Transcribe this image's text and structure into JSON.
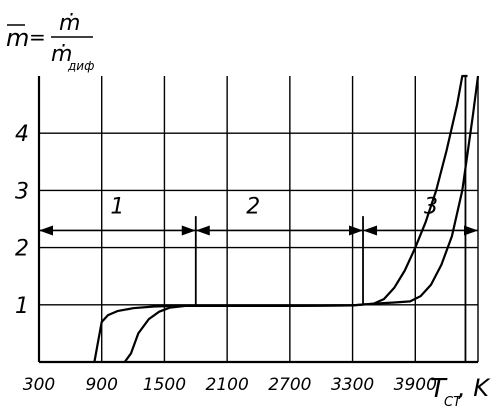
{
  "chart_data": {
    "type": "line",
    "title": "",
    "ylabel": {
      "lhs": "m",
      "equals": "=",
      "numerator": "ṁ",
      "denominator": "ṁ",
      "denominator_subscript": "диф"
    },
    "xlabel": {
      "symbol": "T",
      "subscript": "CT",
      "unit": ", K"
    },
    "xlim": [
      300,
      4500
    ],
    "ylim": [
      0,
      5
    ],
    "x_ticks": [
      300,
      900,
      1500,
      2100,
      2700,
      3300,
      3900
    ],
    "y_ticks": [
      1,
      2,
      3,
      4
    ],
    "grid": true,
    "legend": "none",
    "series": [
      {
        "x": [
          830,
          860,
          900,
          960,
          1050,
          1200,
          1400,
          1600,
          1800,
          2100,
          2700,
          3300,
          3500,
          3600,
          3700,
          3800,
          3900,
          4000,
          4100,
          4200,
          4300,
          4350,
          4400
        ],
        "y": [
          0.0,
          0.3,
          0.7,
          0.82,
          0.89,
          0.94,
          0.97,
          0.98,
          0.98,
          0.98,
          0.98,
          0.99,
          1.02,
          1.1,
          1.3,
          1.6,
          2.0,
          2.45,
          3.0,
          3.7,
          4.5,
          5.0,
          5.0
        ]
      },
      {
        "x": [
          1120,
          1180,
          1250,
          1350,
          1450,
          1550,
          1700,
          1900,
          2100,
          2700,
          3300,
          3500,
          3700,
          3850,
          3950,
          4050,
          4150,
          4250,
          4350,
          4450,
          4500
        ],
        "y": [
          0.0,
          0.15,
          0.5,
          0.75,
          0.88,
          0.95,
          0.98,
          0.98,
          0.98,
          0.98,
          0.99,
          1.02,
          1.04,
          1.06,
          1.15,
          1.35,
          1.7,
          2.2,
          3.0,
          4.3,
          5.0
        ]
      }
    ],
    "regions": [
      {
        "label": "1",
        "x_start": 300,
        "x_end": 1800,
        "label_x": 1050,
        "y": 2.3,
        "label_y": 2.6
      },
      {
        "label": "2",
        "x_start": 1800,
        "x_end": 3400,
        "label_x": 2350,
        "y": 2.3,
        "label_y": 2.6
      },
      {
        "label": "3",
        "x_start": 3400,
        "x_end": 4500,
        "label_x": 4050,
        "y": 2.3,
        "label_y": 2.6
      }
    ],
    "markers": [
      {
        "x": 1800,
        "y_from": 0.98,
        "y_to": 2.55
      },
      {
        "x": 3400,
        "y_from": 0.99,
        "y_to": 2.55
      },
      {
        "x": 4380,
        "y_from": 0,
        "y_to": 5
      }
    ]
  }
}
